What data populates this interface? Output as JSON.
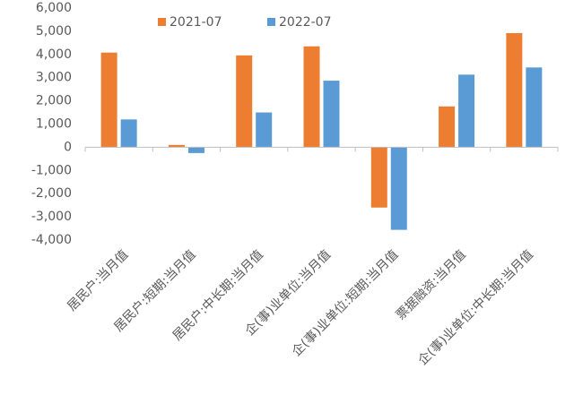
{
  "chart_data": {
    "type": "bar",
    "categories": [
      "居民户:当月值",
      "居民户:短期:当月值",
      "居民户:中长期:当月值",
      "企(事)业单位:当月值",
      "企(事)业单位:短期:当月值",
      "票据融资:当月值",
      "企(事)业单位:中长期:当月值"
    ],
    "series": [
      {
        "name": "2021-07",
        "color": "#ed7d31",
        "values": [
          4080,
          100,
          3960,
          4350,
          -2600,
          1760,
          4920
        ]
      },
      {
        "name": "2022-07",
        "color": "#5b9bd5",
        "values": [
          1200,
          -250,
          1500,
          2870,
          -3560,
          3130,
          3440
        ]
      }
    ],
    "ylim": [
      -4000,
      6000
    ],
    "yticks": [
      {
        "value": -4000,
        "label": "-4,000"
      },
      {
        "value": -3000,
        "label": "-3,000"
      },
      {
        "value": -2000,
        "label": "-2,000"
      },
      {
        "value": -1000,
        "label": "-1,000"
      },
      0,
      {
        "value": 1000,
        "label": "1,000"
      },
      {
        "value": 2000,
        "label": "2,000"
      },
      {
        "value": 3000,
        "label": "3,000"
      },
      {
        "value": 4000,
        "label": "4,000"
      },
      {
        "value": 5000,
        "label": "5,000"
      },
      {
        "value": 6000,
        "label": "6,000"
      }
    ],
    "legend": "top"
  }
}
